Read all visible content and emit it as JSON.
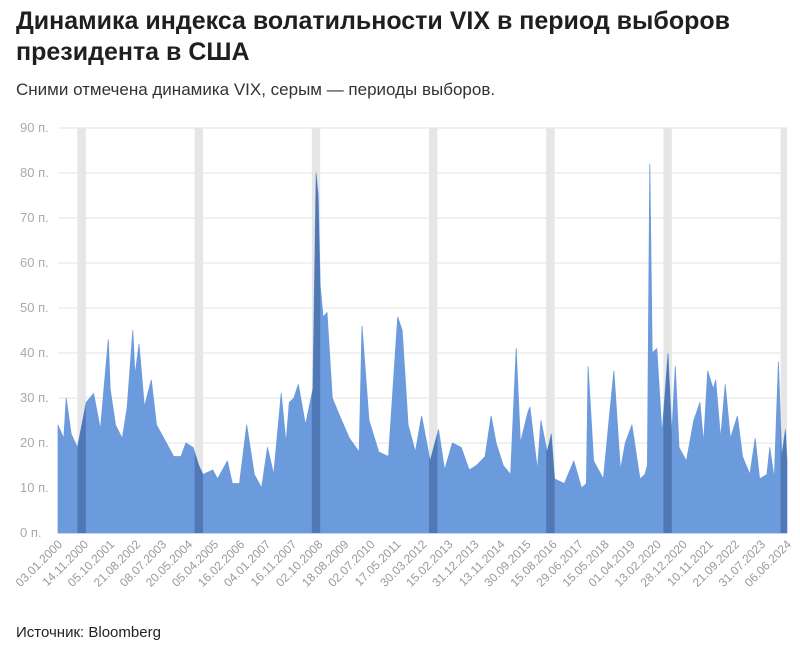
{
  "title": "Динамика индекса волатильности VIX в период выборов президента в США",
  "subtitle": "Сними отмечена динамика VIX, серым — периоды выборов.",
  "source": "Источник: Bloomberg",
  "colors": {
    "area": "#6b9bdc",
    "band": "#e6e6e6",
    "band_over": "#4f78b4",
    "grid": "#e3e3e3"
  },
  "chart_data": {
    "type": "area",
    "title": "Динамика индекса волатильности VIX в период выборов президента в США",
    "xlabel": "",
    "ylabel": "",
    "ylim": [
      0,
      90
    ],
    "xlim": [
      "2000-01-03",
      "2024-11-20"
    ],
    "y_ticks": [
      0,
      10,
      20,
      30,
      40,
      50,
      60,
      70,
      80,
      90
    ],
    "y_tick_labels": [
      "0 п.",
      "10 п.",
      "20 п.",
      "30 п.",
      "40 п.",
      "50 п.",
      "60 п.",
      "70 п.",
      "80 п.",
      "90 п."
    ],
    "x_tick_labels": [
      "03.01.2000",
      "14.11.2000",
      "05.10.2001",
      "21.08.2002",
      "08.07.2003",
      "20.05.2004",
      "05.04.2005",
      "16.02.2006",
      "04.01.2007",
      "16.11.2007",
      "02.10.2008",
      "18.08.2009",
      "02.07.2010",
      "17.05.2011",
      "30.03.2012",
      "15.02.2013",
      "31.12.2013",
      "13.11.2014",
      "30.09.2015",
      "15.08.2016",
      "29.06.2017",
      "15.05.2018",
      "01.04.2019",
      "13.02.2020",
      "28.12.2020",
      "10.11.2021",
      "21.09.2022",
      "31.07.2023",
      "06.06.2024"
    ],
    "grid": true,
    "election_periods": [
      [
        "2000-09-01",
        "2000-12-15"
      ],
      [
        "2004-09-01",
        "2004-12-15"
      ],
      [
        "2008-09-01",
        "2008-12-15"
      ],
      [
        "2012-09-01",
        "2012-12-15"
      ],
      [
        "2016-09-01",
        "2016-12-15"
      ],
      [
        "2020-09-01",
        "2020-12-15"
      ],
      [
        "2024-09-01",
        "2024-11-20"
      ]
    ],
    "series": [
      {
        "x": [
          "2000-01-03",
          "2000-03-15",
          "2000-04-14",
          "2000-06-15",
          "2000-09-01",
          "2000-10-15",
          "2000-12-20",
          "2001-03-22",
          "2001-06-15",
          "2001-09-21",
          "2001-10-15",
          "2001-12-20",
          "2002-03-15",
          "2002-05-15",
          "2002-07-24",
          "2002-08-20",
          "2002-10-09",
          "2002-12-15",
          "2003-03-11",
          "2003-05-15",
          "2003-08-15",
          "2003-12-15",
          "2004-03-15",
          "2004-05-15",
          "2004-08-13",
          "2004-10-25",
          "2004-12-15",
          "2005-04-15",
          "2005-06-15",
          "2005-10-15",
          "2005-12-15",
          "2006-03-15",
          "2006-06-13",
          "2006-09-15",
          "2006-12-15",
          "2007-02-27",
          "2007-05-15",
          "2007-08-16",
          "2007-10-15",
          "2007-11-26",
          "2008-01-22",
          "2008-03-17",
          "2008-06-15",
          "2008-09-15",
          "2008-10-24",
          "2008-11-20",
          "2008-12-15",
          "2009-01-20",
          "2009-03-09",
          "2009-05-15",
          "2009-08-15",
          "2009-12-15",
          "2010-04-15",
          "2010-05-20",
          "2010-08-15",
          "2010-12-15",
          "2011-04-15",
          "2011-08-08",
          "2011-10-03",
          "2011-12-15",
          "2012-03-15",
          "2012-06-01",
          "2012-09-15",
          "2012-12-28",
          "2013-03-15",
          "2013-06-20",
          "2013-10-08",
          "2014-01-15",
          "2014-04-15",
          "2014-08-01",
          "2014-10-15",
          "2014-12-16",
          "2015-03-15",
          "2015-06-15",
          "2015-08-24",
          "2015-10-15",
          "2016-01-20",
          "2016-02-11",
          "2016-05-15",
          "2016-06-27",
          "2016-09-12",
          "2016-11-04",
          "2016-12-15",
          "2017-04-15",
          "2017-08-11",
          "2017-11-15",
          "2018-01-15",
          "2018-02-05",
          "2018-04-15",
          "2018-08-15",
          "2018-10-24",
          "2018-12-24",
          "2019-03-15",
          "2019-05-15",
          "2019-08-05",
          "2019-11-15",
          "2020-01-15",
          "2020-02-15",
          "2020-03-16",
          "2020-04-15",
          "2020-06-11",
          "2020-08-15",
          "2020-10-28",
          "2020-12-15",
          "2021-01-27",
          "2021-03-15",
          "2021-06-15",
          "2021-09-15",
          "2021-11-30",
          "2022-01-15",
          "2022-03-07",
          "2022-05-15",
          "2022-06-15",
          "2022-08-15",
          "2022-10-12",
          "2022-12-15",
          "2023-03-13",
          "2023-05-15",
          "2023-08-15",
          "2023-10-20",
          "2023-12-15",
          "2024-03-15",
          "2024-04-19",
          "2024-06-15",
          "2024-08-05",
          "2024-09-15",
          "2024-10-31",
          "2024-11-20"
        ],
        "y": [
          24,
          21,
          30,
          22,
          19,
          23,
          29,
          31,
          23,
          43,
          32,
          24,
          21,
          28,
          45,
          35,
          42,
          28,
          34,
          24,
          21,
          17,
          17,
          20,
          19,
          15,
          13,
          14,
          12,
          16,
          11,
          11,
          24,
          13,
          10,
          19,
          13,
          31,
          20,
          29,
          30,
          33,
          24,
          32,
          80,
          75,
          55,
          48,
          49,
          30,
          26,
          21,
          18,
          46,
          25,
          18,
          17,
          48,
          45,
          24,
          18,
          26,
          16,
          23,
          14,
          20,
          19,
          14,
          15,
          17,
          26,
          20,
          15,
          13,
          41,
          20,
          27,
          28,
          14,
          25,
          18,
          22,
          12,
          11,
          16,
          10,
          11,
          37,
          16,
          12,
          25,
          36,
          14,
          20,
          24,
          12,
          13,
          15,
          82,
          40,
          41,
          22,
          40,
          22,
          37,
          19,
          16,
          25,
          29,
          20,
          36,
          32,
          34,
          21,
          33,
          21,
          26,
          17,
          13,
          21,
          12,
          13,
          19,
          12,
          38,
          17,
          23,
          16
        ]
      }
    ]
  }
}
